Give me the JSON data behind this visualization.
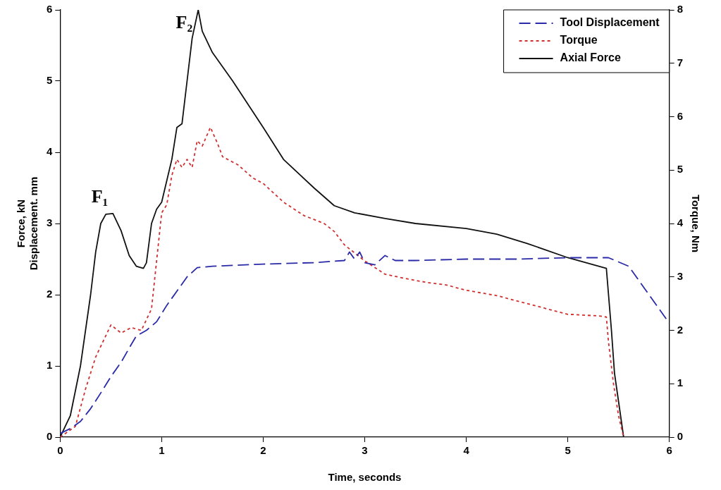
{
  "chart_data": {
    "type": "line",
    "xlabel": "Time, seconds",
    "ylabel": "Force, kN\nDisplacement. mm",
    "y2label": "Torque, Nm",
    "xlim": [
      0,
      6
    ],
    "xticks": [
      0,
      1,
      2,
      3,
      4,
      5,
      6
    ],
    "ylim": [
      0,
      6
    ],
    "yticks": [
      0,
      1,
      2,
      3,
      4,
      5,
      6
    ],
    "y2lim": [
      0,
      8
    ],
    "y2ticks": [
      0,
      1,
      2,
      3,
      4,
      5,
      6,
      7,
      8
    ],
    "grid": false,
    "legend": "top right",
    "marker": "none",
    "annotations": [
      {
        "text": "F₁",
        "x": 0.5,
        "y": 3.14
      },
      {
        "text": "F₂",
        "x": 1.36,
        "y": 6
      }
    ],
    "series": [
      {
        "name": "Tool Displacement",
        "color": "#2a2aa8",
        "line_style": "dashed",
        "x": [
          0,
          0.1,
          0.2,
          0.3,
          0.4,
          0.5,
          0.6,
          0.7,
          0.75,
          0.85,
          0.95,
          1.05,
          1.15,
          1.25,
          1.35,
          1.5,
          2,
          2.5,
          2.8,
          2.85,
          2.9,
          2.95,
          3,
          3.1,
          3.2,
          3.3,
          3.5,
          4,
          4.5,
          5,
          5.4,
          5.6,
          5.75,
          6
        ],
        "values": [
          0.05,
          0.12,
          0.22,
          0.4,
          0.62,
          0.85,
          1.05,
          1.3,
          1.42,
          1.5,
          1.62,
          1.85,
          2.05,
          2.25,
          2.38,
          2.4,
          2.43,
          2.45,
          2.48,
          2.6,
          2.5,
          2.6,
          2.45,
          2.42,
          2.55,
          2.48,
          2.48,
          2.5,
          2.5,
          2.52,
          2.52,
          2.4,
          2.1,
          1.6
        ]
      },
      {
        "name": "Torque",
        "color": "#d03030",
        "line_style": "dotted",
        "axis": "y2",
        "x": [
          0,
          0.15,
          0.25,
          0.35,
          0.45,
          0.5,
          0.6,
          0.7,
          0.8,
          0.85,
          0.9,
          0.95,
          1,
          1.05,
          1.1,
          1.15,
          1.2,
          1.25,
          1.3,
          1.35,
          1.4,
          1.48,
          1.55,
          1.6,
          1.75,
          1.9,
          2,
          2.2,
          2.4,
          2.6,
          2.7,
          2.8,
          2.9,
          3,
          3.2,
          3.4,
          3.6,
          3.8,
          4,
          4.3,
          4.6,
          5,
          5.3,
          5.38,
          5.4,
          5.45,
          5.5,
          5.55
        ],
        "values": [
          0,
          0.2,
          0.9,
          1.5,
          1.9,
          2.1,
          1.95,
          2.05,
          2,
          2.2,
          2.4,
          3.3,
          4.2,
          4.35,
          4.9,
          5.2,
          5.05,
          5.2,
          5.05,
          5.55,
          5.45,
          5.8,
          5.5,
          5.25,
          5.1,
          4.85,
          4.75,
          4.4,
          4.15,
          4,
          3.85,
          3.6,
          3.45,
          3.3,
          3.05,
          2.97,
          2.9,
          2.85,
          2.75,
          2.65,
          2.5,
          2.3,
          2.27,
          2.25,
          1.8,
          1,
          0.4,
          0
        ]
      },
      {
        "name": "Axial Force",
        "color": "#111111",
        "line_style": "solid",
        "x": [
          0,
          0.1,
          0.2,
          0.3,
          0.35,
          0.4,
          0.45,
          0.52,
          0.6,
          0.68,
          0.75,
          0.82,
          0.85,
          0.9,
          0.95,
          1,
          1.1,
          1.15,
          1.2,
          1.25,
          1.3,
          1.36,
          1.4,
          1.5,
          1.7,
          2,
          2.2,
          2.5,
          2.7,
          2.9,
          3.2,
          3.5,
          4,
          4.3,
          4.6,
          5,
          5.38,
          5.43,
          5.46,
          5.5,
          5.55,
          6
        ],
        "values": [
          0,
          0.3,
          1,
          2,
          2.6,
          3,
          3.13,
          3.14,
          2.9,
          2.55,
          2.4,
          2.37,
          2.45,
          3,
          3.2,
          3.3,
          3.9,
          4.35,
          4.4,
          5,
          5.6,
          6,
          5.7,
          5.4,
          5,
          4.35,
          3.9,
          3.5,
          3.25,
          3.15,
          3.07,
          3,
          2.93,
          2.85,
          2.72,
          2.52,
          2.37,
          1.5,
          0.9,
          0.5,
          0,
          0
        ]
      }
    ]
  }
}
